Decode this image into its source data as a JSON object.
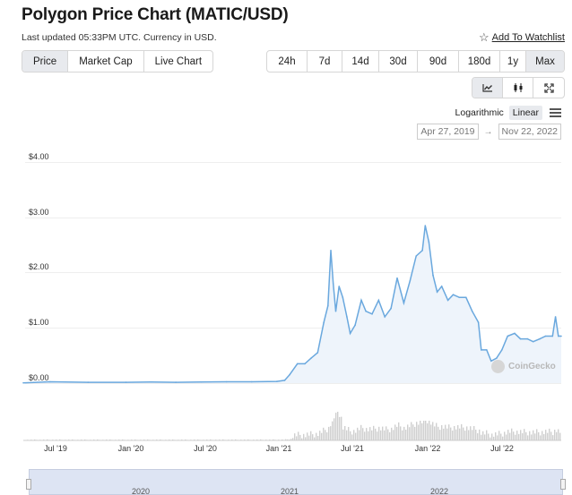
{
  "header": {
    "title": "Polygon Price Chart (MATIC/USD)",
    "updated": "Last updated 05:33PM UTC. Currency in USD.",
    "watchlist_label": "Add To Watchlist"
  },
  "view_tabs": [
    {
      "label": "Price",
      "active": true
    },
    {
      "label": "Market Cap",
      "active": false
    },
    {
      "label": "Live Chart",
      "active": false
    }
  ],
  "range_tabs": [
    {
      "label": "24h",
      "active": false
    },
    {
      "label": "7d",
      "active": false
    },
    {
      "label": "14d",
      "active": false
    },
    {
      "label": "30d",
      "active": false
    },
    {
      "label": "90d",
      "active": false
    },
    {
      "label": "180d",
      "active": false
    },
    {
      "label": "1y",
      "active": false
    },
    {
      "label": "Max",
      "active": true
    }
  ],
  "chart_style_icons": [
    "line-chart-icon",
    "candlestick-icon",
    "fullscreen-icon"
  ],
  "scale": {
    "options": [
      "Logarithmic",
      "Linear"
    ],
    "selected": "Linear"
  },
  "date_range": {
    "from": "Apr 27, 2019",
    "arrow": "→",
    "to": "Nov 22, 2022"
  },
  "watermark": "CoinGecko",
  "colors": {
    "line": "#6aa8de",
    "fill": "#eef4fb",
    "volume": "#cfcfcf",
    "navigator": "#dde4f3",
    "active_tab": "#e8eaee"
  },
  "chart_data": {
    "type": "line",
    "ylabel": "",
    "y_tick_labels": [
      "$4.00",
      "$3.00",
      "$2.00",
      "$1.00",
      "$0.00"
    ],
    "ylim": [
      0,
      4
    ],
    "x_tick_labels": [
      "Jul '19",
      "Jan '20",
      "Jul '20",
      "Jan '21",
      "Jul '21",
      "Jan '22",
      "Jul '22"
    ],
    "navigator_labels": [
      "2020",
      "2021",
      "2022"
    ],
    "series": [
      {
        "x": [
          "2019-04-27",
          "2019-07-01",
          "2019-10-01",
          "2020-01-01",
          "2020-03-01",
          "2020-05-01",
          "2020-07-01",
          "2020-09-01",
          "2020-11-01",
          "2021-01-01",
          "2021-01-20",
          "2021-02-01",
          "2021-02-20",
          "2021-03-10",
          "2021-03-25",
          "2021-04-10",
          "2021-04-25",
          "2021-05-05",
          "2021-05-12",
          "2021-05-18",
          "2021-05-24",
          "2021-06-01",
          "2021-06-10",
          "2021-06-20",
          "2021-06-28",
          "2021-07-10",
          "2021-07-25",
          "2021-08-05",
          "2021-08-20",
          "2021-09-05",
          "2021-09-20",
          "2021-10-05",
          "2021-10-20",
          "2021-11-05",
          "2021-11-20",
          "2021-12-05",
          "2021-12-20",
          "2021-12-27",
          "2022-01-05",
          "2022-01-15",
          "2022-01-25",
          "2022-02-05",
          "2022-02-20",
          "2022-03-05",
          "2022-03-20",
          "2022-04-05",
          "2022-04-20",
          "2022-05-05",
          "2022-05-12",
          "2022-05-25",
          "2022-06-05",
          "2022-06-18",
          "2022-07-01",
          "2022-07-15",
          "2022-08-01",
          "2022-08-15",
          "2022-09-01",
          "2022-09-15",
          "2022-10-01",
          "2022-10-15",
          "2022-11-01",
          "2022-11-08",
          "2022-11-15",
          "2022-11-22"
        ],
        "y": [
          0.005,
          0.025,
          0.015,
          0.015,
          0.02,
          0.015,
          0.02,
          0.025,
          0.025,
          0.03,
          0.05,
          0.15,
          0.35,
          0.35,
          0.45,
          0.55,
          1.1,
          1.4,
          2.4,
          1.8,
          1.3,
          1.75,
          1.55,
          1.2,
          0.9,
          1.05,
          1.5,
          1.3,
          1.25,
          1.5,
          1.2,
          1.35,
          1.9,
          1.45,
          1.85,
          2.3,
          2.4,
          2.85,
          2.55,
          1.95,
          1.65,
          1.75,
          1.5,
          1.6,
          1.55,
          1.55,
          1.3,
          1.1,
          0.6,
          0.6,
          0.4,
          0.45,
          0.6,
          0.85,
          0.9,
          0.8,
          0.8,
          0.75,
          0.8,
          0.85,
          0.85,
          1.2,
          0.85,
          0.85
        ]
      }
    ]
  }
}
